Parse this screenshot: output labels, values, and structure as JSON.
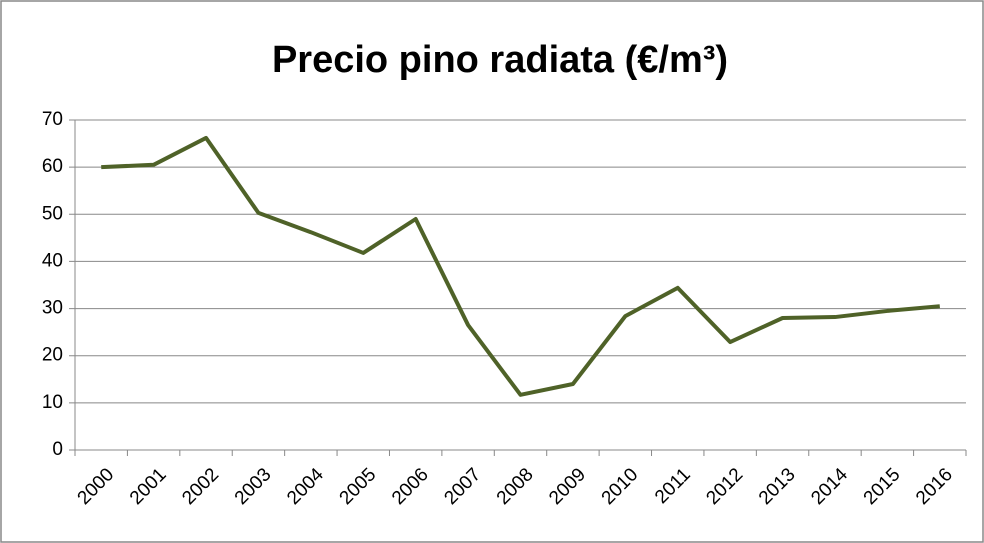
{
  "chart_data": {
    "type": "line",
    "title": "Precio pino radiata (€/m³)",
    "categories": [
      "2000",
      "2001",
      "2002",
      "2003",
      "2004",
      "2005",
      "2006",
      "2007",
      "2008",
      "2009",
      "2010",
      "2011",
      "2012",
      "2013",
      "2014",
      "2015",
      "2016"
    ],
    "values": [
      60,
      60.5,
      66.2,
      50.3,
      46.2,
      41.8,
      49,
      26.5,
      11.7,
      14,
      28.4,
      34.4,
      22.9,
      28,
      28.2,
      29.5,
      30.5
    ],
    "color": "#4f6228",
    "ylim": [
      0,
      70
    ],
    "yticks": [
      0,
      10,
      20,
      30,
      40,
      50,
      60,
      70
    ],
    "grid": true
  }
}
